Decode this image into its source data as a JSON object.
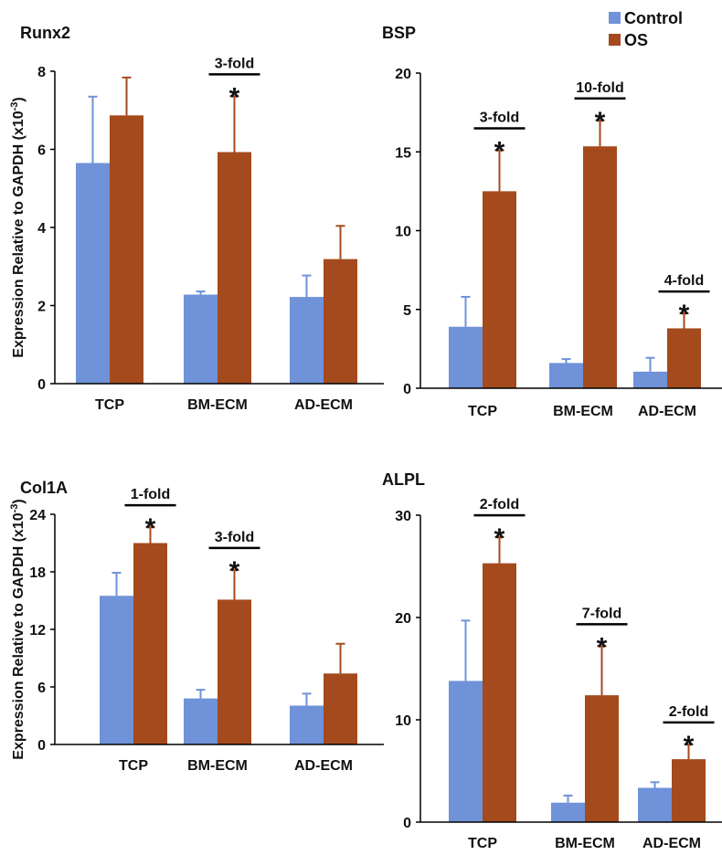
{
  "colors": {
    "control": "#6f92d8",
    "os": "#a44a1d",
    "axis": "#000000",
    "text": "#111111"
  },
  "legend": [
    {
      "name": "Control",
      "color": "#6f92d8"
    },
    {
      "name": "OS",
      "color": "#a44a1d"
    }
  ],
  "ylabel_text": "Expression Relative to GAPDH (x10",
  "ylabel_sup": "-3",
  "ylabel_close": ")",
  "chart_data": [
    {
      "type": "bar",
      "title": "Runx2",
      "categories": [
        "TCP",
        "BM-ECM",
        "AD-ECM"
      ],
      "ylim": [
        0,
        8
      ],
      "yticks": [
        0,
        2,
        4,
        6,
        8
      ],
      "ylabel": "Expression Relative to GAPDH (x10-3)",
      "series": [
        {
          "name": "Control",
          "values": [
            5.65,
            2.28,
            2.22
          ],
          "errors": [
            1.7,
            0.08,
            0.55
          ]
        },
        {
          "name": "OS",
          "values": [
            6.87,
            5.93,
            3.19
          ],
          "errors": [
            0.97,
            1.43,
            0.85
          ]
        }
      ],
      "annotations": [
        {
          "category": 1,
          "label": "3-fold",
          "star": "*"
        }
      ]
    },
    {
      "type": "bar",
      "title": "BSP",
      "categories": [
        "TCP",
        "BM-ECM",
        "AD-ECM"
      ],
      "ylim": [
        0,
        20
      ],
      "yticks": [
        0,
        5,
        10,
        15,
        20
      ],
      "ylabel": "",
      "series": [
        {
          "name": "Control",
          "values": [
            3.9,
            1.6,
            1.05
          ],
          "errors": [
            1.9,
            0.25,
            0.88
          ]
        },
        {
          "name": "OS",
          "values": [
            12.5,
            15.35,
            3.8
          ],
          "errors": [
            2.6,
            1.65,
            0.95
          ]
        }
      ],
      "annotations": [
        {
          "category": 0,
          "label": "3-fold",
          "star": "*"
        },
        {
          "category": 1,
          "label": "10-fold",
          "star": "*"
        },
        {
          "category": 2,
          "label": "4-fold",
          "star": "*"
        }
      ]
    },
    {
      "type": "bar",
      "title": "Col1A",
      "categories": [
        "TCP",
        "BM-ECM",
        "AD-ECM"
      ],
      "ylim": [
        0,
        24
      ],
      "yticks": [
        0,
        6,
        12,
        18,
        24
      ],
      "ylabel": "Expression Relative to GAPDH (x10-3)",
      "series": [
        {
          "name": "Control",
          "values": [
            15.5,
            4.8,
            4.05
          ],
          "errors": [
            2.4,
            0.9,
            1.25
          ]
        },
        {
          "name": "OS",
          "values": [
            21.0,
            15.1,
            7.4
          ],
          "errors": [
            1.65,
            3.1,
            3.1
          ]
        }
      ],
      "annotations": [
        {
          "category": 0,
          "label": "1-fold",
          "star": "*"
        },
        {
          "category": 1,
          "label": "3-fold",
          "star": "*"
        }
      ]
    },
    {
      "type": "bar",
      "title": "ALPL",
      "categories": [
        "TCP",
        "BM-ECM",
        "AD-ECM"
      ],
      "ylim": [
        0,
        30
      ],
      "yticks": [
        0,
        10,
        20,
        30
      ],
      "ylabel": "",
      "series": [
        {
          "name": "Control",
          "values": [
            13.8,
            1.9,
            3.35
          ],
          "errors": [
            5.9,
            0.7,
            0.55
          ]
        },
        {
          "name": "OS",
          "values": [
            25.3,
            12.4,
            6.15
          ],
          "errors": [
            2.55,
            4.8,
            1.45
          ]
        }
      ],
      "annotations": [
        {
          "category": 0,
          "label": "2-fold",
          "star": "*"
        },
        {
          "category": 1,
          "label": "7-fold",
          "star": "*"
        },
        {
          "category": 2,
          "label": "2-fold",
          "star": "*"
        }
      ]
    }
  ]
}
